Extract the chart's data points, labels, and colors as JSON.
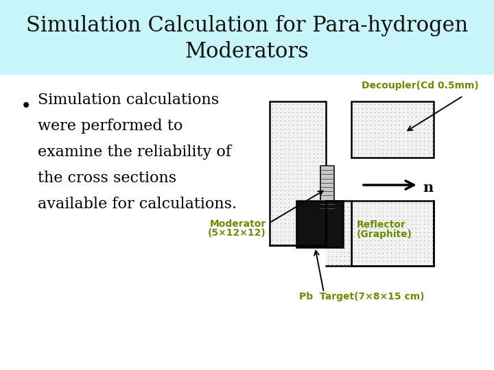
{
  "title_line1": "Simulation Calculation for Para-hydrogen",
  "title_line2": "Moderators",
  "title_bg": "#c8f5f8",
  "title_color": "#111111",
  "title_fontsize": 22,
  "body_text_lines": [
    "Simulation calculations",
    "were performed to",
    "examine the reliability of",
    "the cross sections",
    "available for calculations."
  ],
  "body_color": "#000000",
  "body_fontsize": 16,
  "label_color": "#6b8c00",
  "label_decoupler": "Decoupler(Cd 0.5mm)",
  "label_moderator_line1": "Moderator",
  "label_moderator_line2": "(5×12×12)",
  "label_reflector_line1": "Reflector",
  "label_reflector_line2": "(Graphite)",
  "label_target": "Pb  Target(7×8×15 cm)",
  "label_n": "n",
  "bg_color": "#ffffff",
  "hatch_color": "#aaaaaa"
}
